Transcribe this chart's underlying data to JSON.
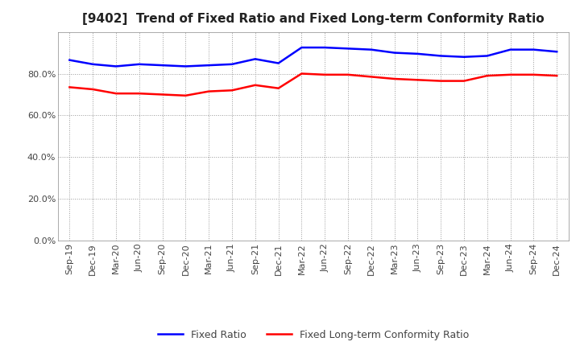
{
  "title": "[9402]  Trend of Fixed Ratio and Fixed Long-term Conformity Ratio",
  "x_labels": [
    "Sep-19",
    "Dec-19",
    "Mar-20",
    "Jun-20",
    "Sep-20",
    "Dec-20",
    "Mar-21",
    "Jun-21",
    "Sep-21",
    "Dec-21",
    "Mar-22",
    "Jun-22",
    "Sep-22",
    "Dec-22",
    "Mar-23",
    "Jun-23",
    "Sep-23",
    "Dec-23",
    "Mar-24",
    "Jun-24",
    "Sep-24",
    "Dec-24"
  ],
  "fixed_ratio": [
    86.5,
    84.5,
    83.5,
    84.5,
    84.0,
    83.5,
    84.0,
    84.5,
    87.0,
    85.0,
    92.5,
    92.5,
    92.0,
    91.5,
    90.0,
    89.5,
    88.5,
    88.0,
    88.5,
    91.5,
    91.5,
    90.5
  ],
  "fixed_lt_ratio": [
    73.5,
    72.5,
    70.5,
    70.5,
    70.0,
    69.5,
    71.5,
    72.0,
    74.5,
    73.0,
    80.0,
    79.5,
    79.5,
    78.5,
    77.5,
    77.0,
    76.5,
    76.5,
    79.0,
    79.5,
    79.5,
    79.0
  ],
  "fixed_ratio_color": "#0000FF",
  "fixed_lt_ratio_color": "#FF0000",
  "ylim": [
    0,
    100
  ],
  "yticks": [
    0,
    20,
    40,
    60,
    80
  ],
  "background_color": "#FFFFFF",
  "plot_bg_color": "#FFFFFF",
  "grid_color": "#AAAAAA",
  "legend_fixed_ratio": "Fixed Ratio",
  "legend_fixed_lt_ratio": "Fixed Long-term Conformity Ratio",
  "title_fontsize": 11,
  "tick_fontsize": 8,
  "legend_fontsize": 9
}
